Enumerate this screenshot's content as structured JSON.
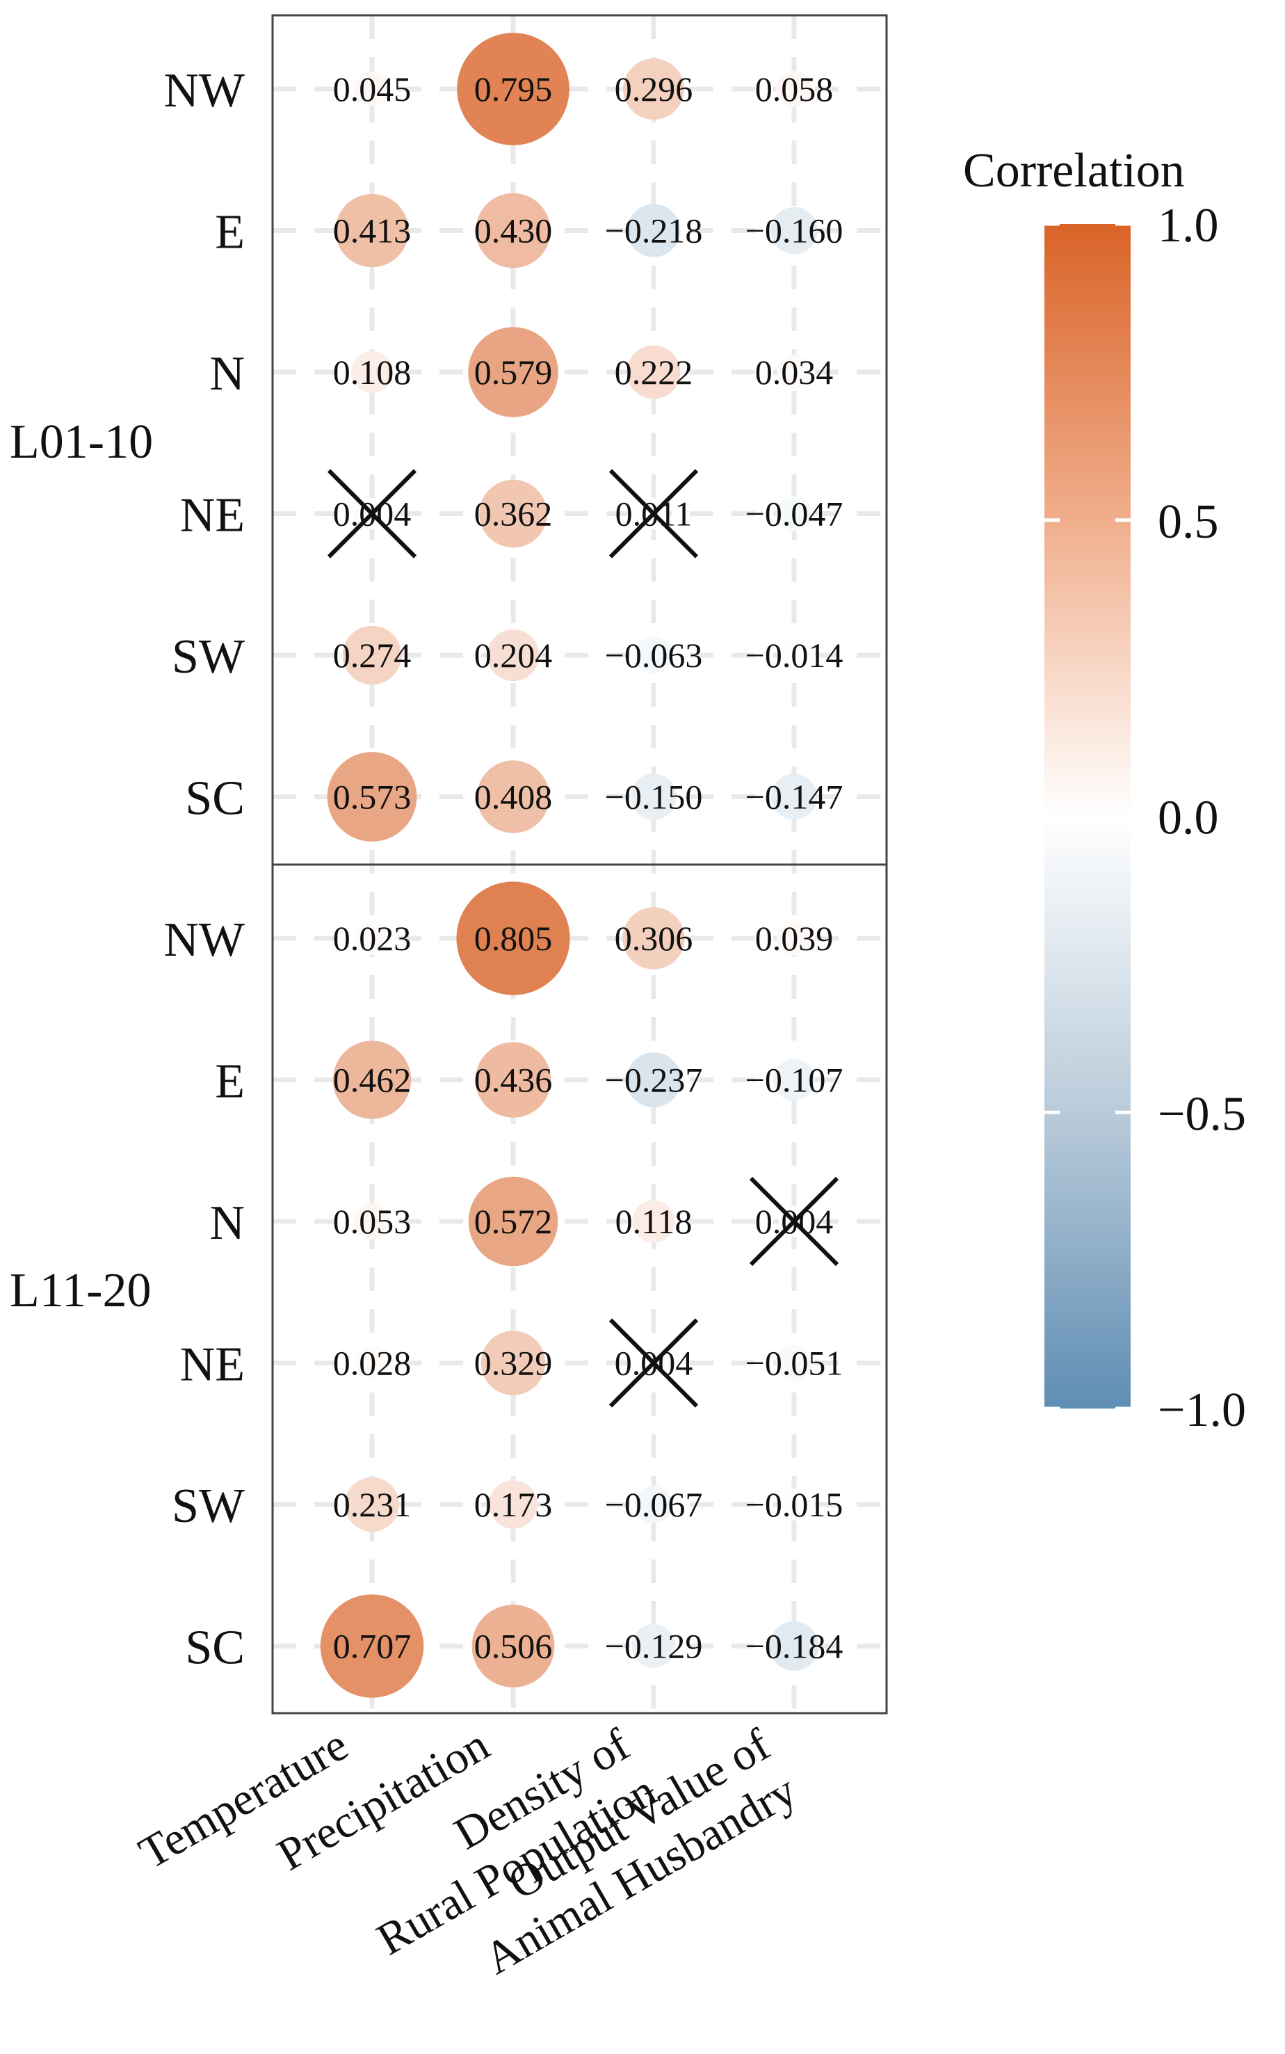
{
  "chart_data": {
    "type": "heatmap",
    "style": "bubble-correlation",
    "x_categories": [
      "Temperature",
      "Precipitation",
      "Density of Rural Population",
      "Output Value of Animal Husbandry"
    ],
    "x_tick_lines": [
      [
        "Temperature"
      ],
      [
        "Precipitation"
      ],
      [
        "Density of",
        "Rural Population"
      ],
      [
        "Output Value of",
        "Animal Husbandry"
      ]
    ],
    "panels": [
      {
        "label": "L01-10",
        "rows": [
          "NW",
          "E",
          "N",
          "NE",
          "SW",
          "SC"
        ],
        "values": [
          [
            0.045,
            0.795,
            0.296,
            0.058
          ],
          [
            0.413,
            0.43,
            -0.218,
            -0.16
          ],
          [
            0.108,
            0.579,
            0.222,
            0.034
          ],
          [
            0.004,
            0.362,
            0.011,
            -0.047
          ],
          [
            0.274,
            0.204,
            -0.063,
            -0.014
          ],
          [
            0.573,
            0.408,
            -0.15,
            -0.147
          ]
        ],
        "labels": [
          [
            "0.045",
            "0.795",
            "0.296",
            "0.058"
          ],
          [
            "0.413",
            "0.430",
            "−0.218",
            "−0.160"
          ],
          [
            "0.108",
            "0.579",
            "0.222",
            "0.034"
          ],
          [
            "0.004",
            "0.362",
            "0.011",
            "−0.047"
          ],
          [
            "0.274",
            "0.204",
            "−0.063",
            "−0.014"
          ],
          [
            "0.573",
            "0.408",
            "−0.150",
            "−0.147"
          ]
        ],
        "insignificant": [
          [
            3,
            0
          ],
          [
            3,
            2
          ]
        ]
      },
      {
        "label": "L11-20",
        "rows": [
          "NW",
          "E",
          "N",
          "NE",
          "SW",
          "SC"
        ],
        "values": [
          [
            0.023,
            0.805,
            0.306,
            0.039
          ],
          [
            0.462,
            0.436,
            -0.237,
            -0.107
          ],
          [
            0.053,
            0.572,
            0.118,
            0.004
          ],
          [
            0.028,
            0.329,
            0.004,
            -0.051
          ],
          [
            0.231,
            0.173,
            -0.067,
            -0.015
          ],
          [
            0.707,
            0.506,
            -0.129,
            -0.184
          ]
        ],
        "labels": [
          [
            "0.023",
            "0.805",
            "0.306",
            "0.039"
          ],
          [
            "0.462",
            "0.436",
            "−0.237",
            "−0.107"
          ],
          [
            "0.053",
            "0.572",
            "0.118",
            "0.004"
          ],
          [
            "0.028",
            "0.329",
            "0.004",
            "−0.051"
          ],
          [
            "0.231",
            "0.173",
            "−0.067",
            "−0.015"
          ],
          [
            "0.707",
            "0.506",
            "−0.129",
            "−0.184"
          ]
        ],
        "insignificant": [
          [
            2,
            3
          ],
          [
            3,
            2
          ]
        ]
      }
    ],
    "legend": {
      "title": "Correlation",
      "range": [
        -1.0,
        1.0
      ],
      "ticks": [
        1.0,
        0.5,
        0.0,
        -0.5,
        -1.0
      ],
      "tick_labels": [
        "1.0",
        "0.5",
        "0.0",
        "−0.5",
        "−1.0"
      ],
      "colors": {
        "low": "#5f8db3",
        "mid": "#ffffff",
        "high": "#d96328"
      },
      "position": "right"
    },
    "grid": true
  }
}
